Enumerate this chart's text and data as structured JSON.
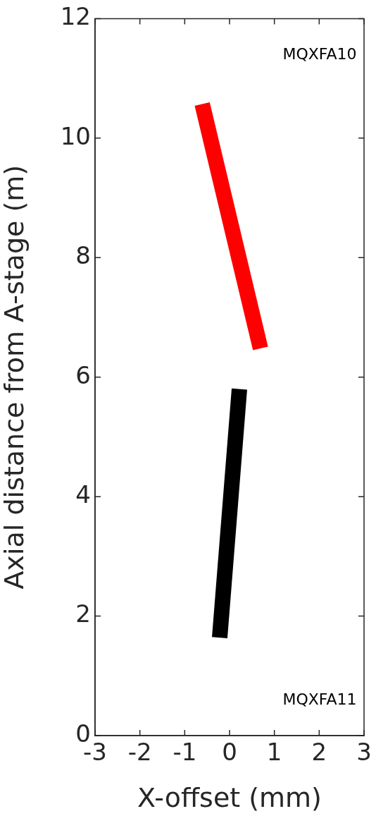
{
  "chart_data": {
    "type": "line",
    "xlabel": "X-offset (mm)",
    "ylabel": "Axial distance from A-stage (m)",
    "xlim": [
      -3,
      3
    ],
    "xticks": [
      -3,
      -2,
      -1,
      0,
      1,
      2,
      3
    ],
    "ylim": [
      0,
      12
    ],
    "yticks": [
      0,
      2,
      4,
      6,
      8,
      10,
      12
    ],
    "grid": false,
    "legend": false,
    "marker": "none",
    "line_style": "solid",
    "series": [
      {
        "color": "#ff0000",
        "x": [
          -0.61,
          0.69
        ],
        "values": [
          10.57,
          6.48
        ]
      },
      {
        "color": "#000000",
        "x": [
          0.22,
          -0.22
        ],
        "values": [
          5.8,
          1.64
        ]
      }
    ],
    "annotations": [
      "MQXFA10",
      "MQXFA11"
    ]
  }
}
